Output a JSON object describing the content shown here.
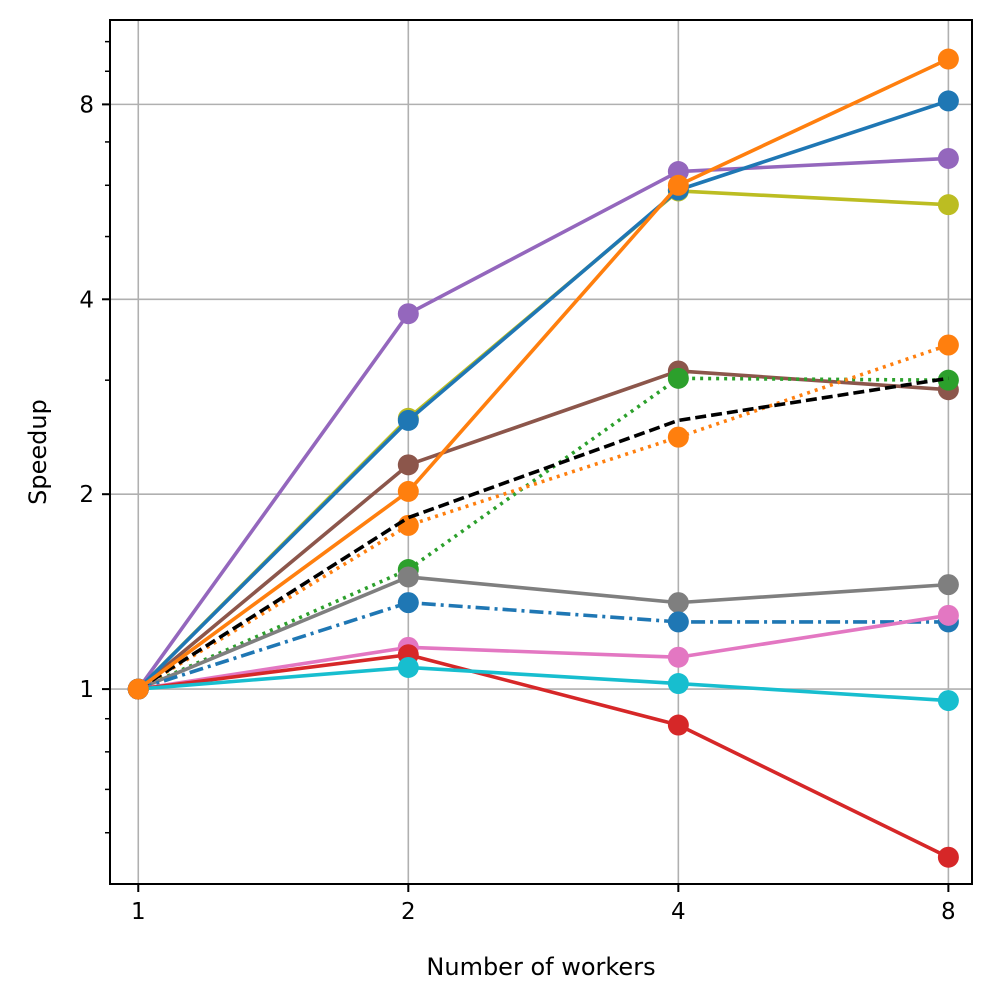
{
  "chart_data": {
    "type": "line",
    "title": "",
    "xlabel": "Number of workers",
    "ylabel": "Speedup",
    "x": [
      1,
      2,
      4,
      8
    ],
    "x_scale": "log2",
    "y_scale": "log2",
    "xlim": [
      0.93,
      8.5
    ],
    "ylim": [
      0.5,
      10.8
    ],
    "xticks": [
      1,
      2,
      4,
      8
    ],
    "xtick_labels": [
      "1",
      "2",
      "4",
      "8"
    ],
    "yticks": [
      1,
      2,
      4,
      8
    ],
    "ytick_labels": [
      "1",
      "2",
      "4",
      "8"
    ],
    "y_minor_ticks": [
      0.6,
      0.7,
      0.8,
      0.9,
      3,
      5,
      6,
      7,
      9,
      10
    ],
    "grid": true,
    "legend": "none",
    "series": [
      {
        "values": [
          1,
          2.62,
          5.88,
          5.6
        ],
        "color": "#bcbd22",
        "linestyle": "solid",
        "marker": "o"
      },
      {
        "values": [
          1,
          2.22,
          3.1,
          2.9
        ],
        "color": "#8c564b",
        "linestyle": "solid",
        "marker": "o"
      },
      {
        "values": [
          1,
          1.53,
          3.02,
          3.0
        ],
        "color": "#2ca02c",
        "linestyle": "dotted",
        "marker": "o"
      },
      {
        "values": [
          1,
          1.79,
          2.45,
          3.4
        ],
        "color": "#ff7f0e",
        "linestyle": "dotted",
        "marker": "o"
      },
      {
        "values": [
          1,
          1.49,
          1.36,
          1.45
        ],
        "color": "#7f7f7f",
        "linestyle": "solid",
        "marker": "o"
      },
      {
        "values": [
          1,
          1.36,
          1.27,
          1.27
        ],
        "color": "#1f77b4",
        "linestyle": "dashdot",
        "marker": "o"
      },
      {
        "values": [
          1,
          1.16,
          1.12,
          1.3
        ],
        "color": "#e377c2",
        "linestyle": "solid",
        "marker": "o"
      },
      {
        "values": [
          1,
          1.13,
          0.88,
          0.55
        ],
        "color": "#d62728",
        "linestyle": "solid",
        "marker": "o"
      },
      {
        "values": [
          1,
          1.08,
          1.02,
          0.96
        ],
        "color": "#17becf",
        "linestyle": "solid",
        "marker": "o"
      },
      {
        "values": [
          1,
          1.84,
          2.6,
          3.02
        ],
        "color": "#000000",
        "linestyle": "dashed",
        "marker": "none"
      },
      {
        "values": [
          1,
          3.8,
          6.3,
          6.6
        ],
        "color": "#9467bd",
        "linestyle": "solid",
        "marker": "o"
      },
      {
        "values": [
          1,
          2.6,
          5.9,
          8.1
        ],
        "color": "#1f77b4",
        "linestyle": "solid",
        "marker": "o"
      },
      {
        "values": [
          1,
          2.02,
          6.0,
          9.4
        ],
        "color": "#ff7f0e",
        "linestyle": "solid",
        "marker": "o"
      }
    ]
  }
}
